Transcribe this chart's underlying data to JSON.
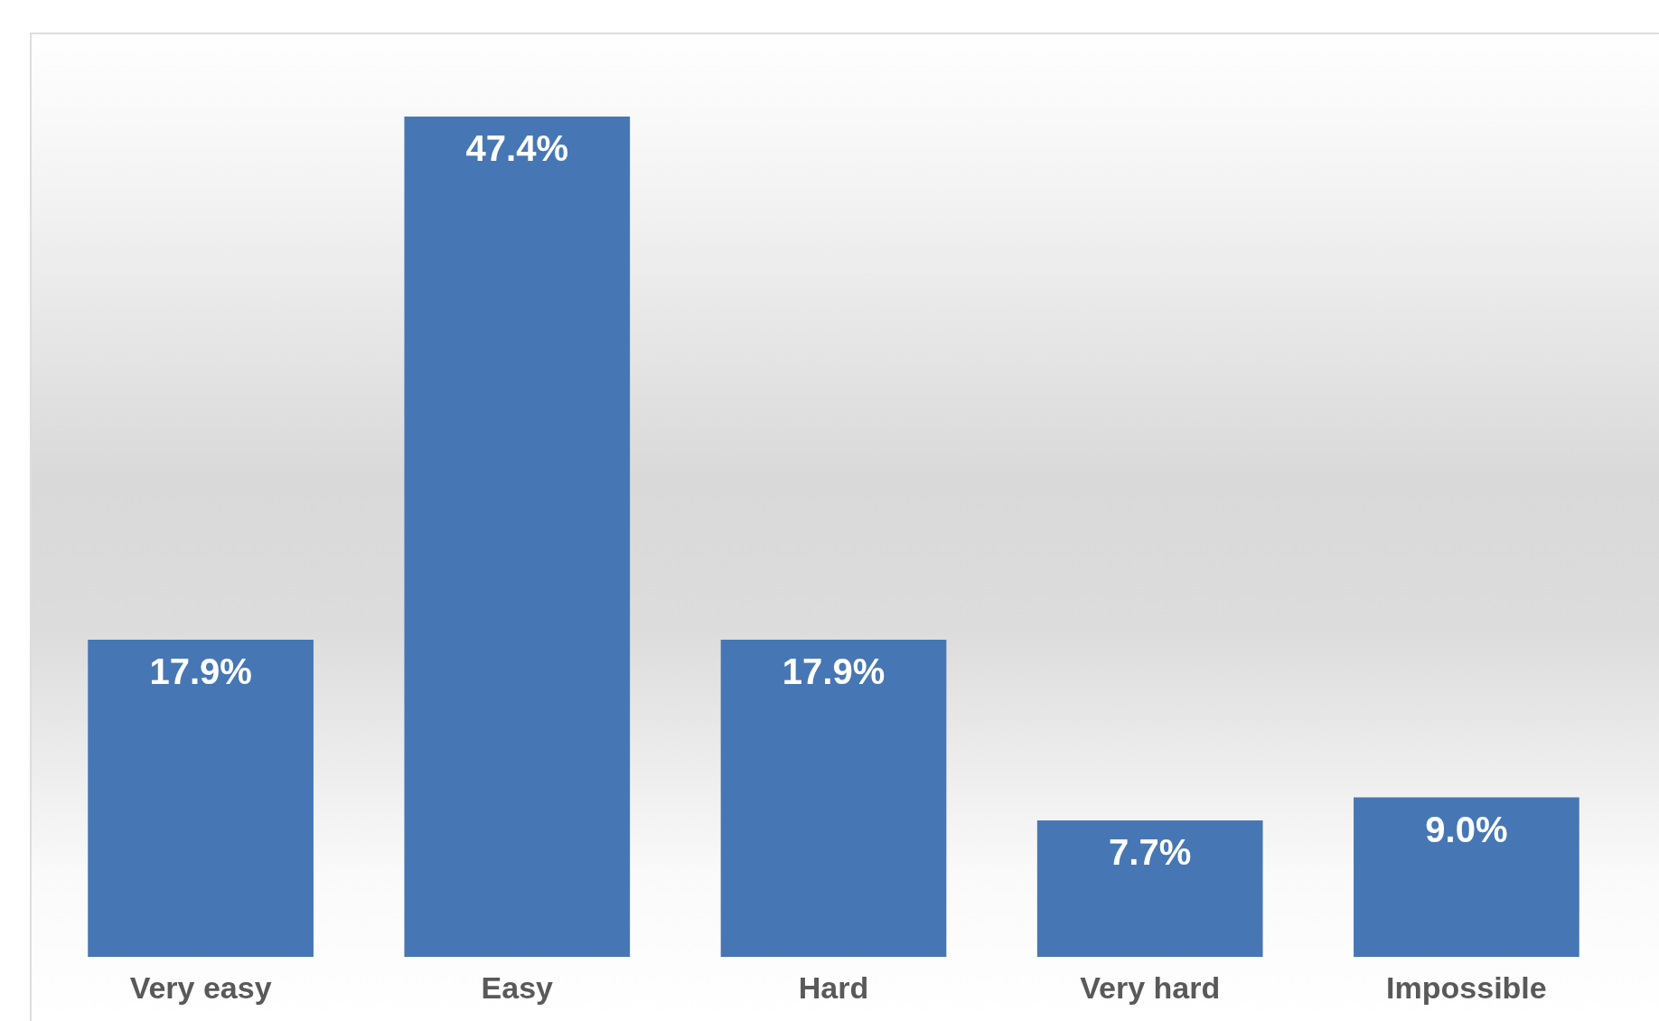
{
  "chart_data": {
    "type": "bar",
    "categories": [
      "Very easy",
      "Easy",
      "Hard",
      "Very hard",
      "Impossible"
    ],
    "values": [
      17.9,
      47.4,
      17.9,
      7.7,
      9.0
    ],
    "value_labels": [
      "17.9%",
      "47.4%",
      "17.9%",
      "7.7%",
      "9.0%"
    ],
    "color": "#4677b4",
    "grid": false,
    "legend": false,
    "tick_labels": "x"
  }
}
